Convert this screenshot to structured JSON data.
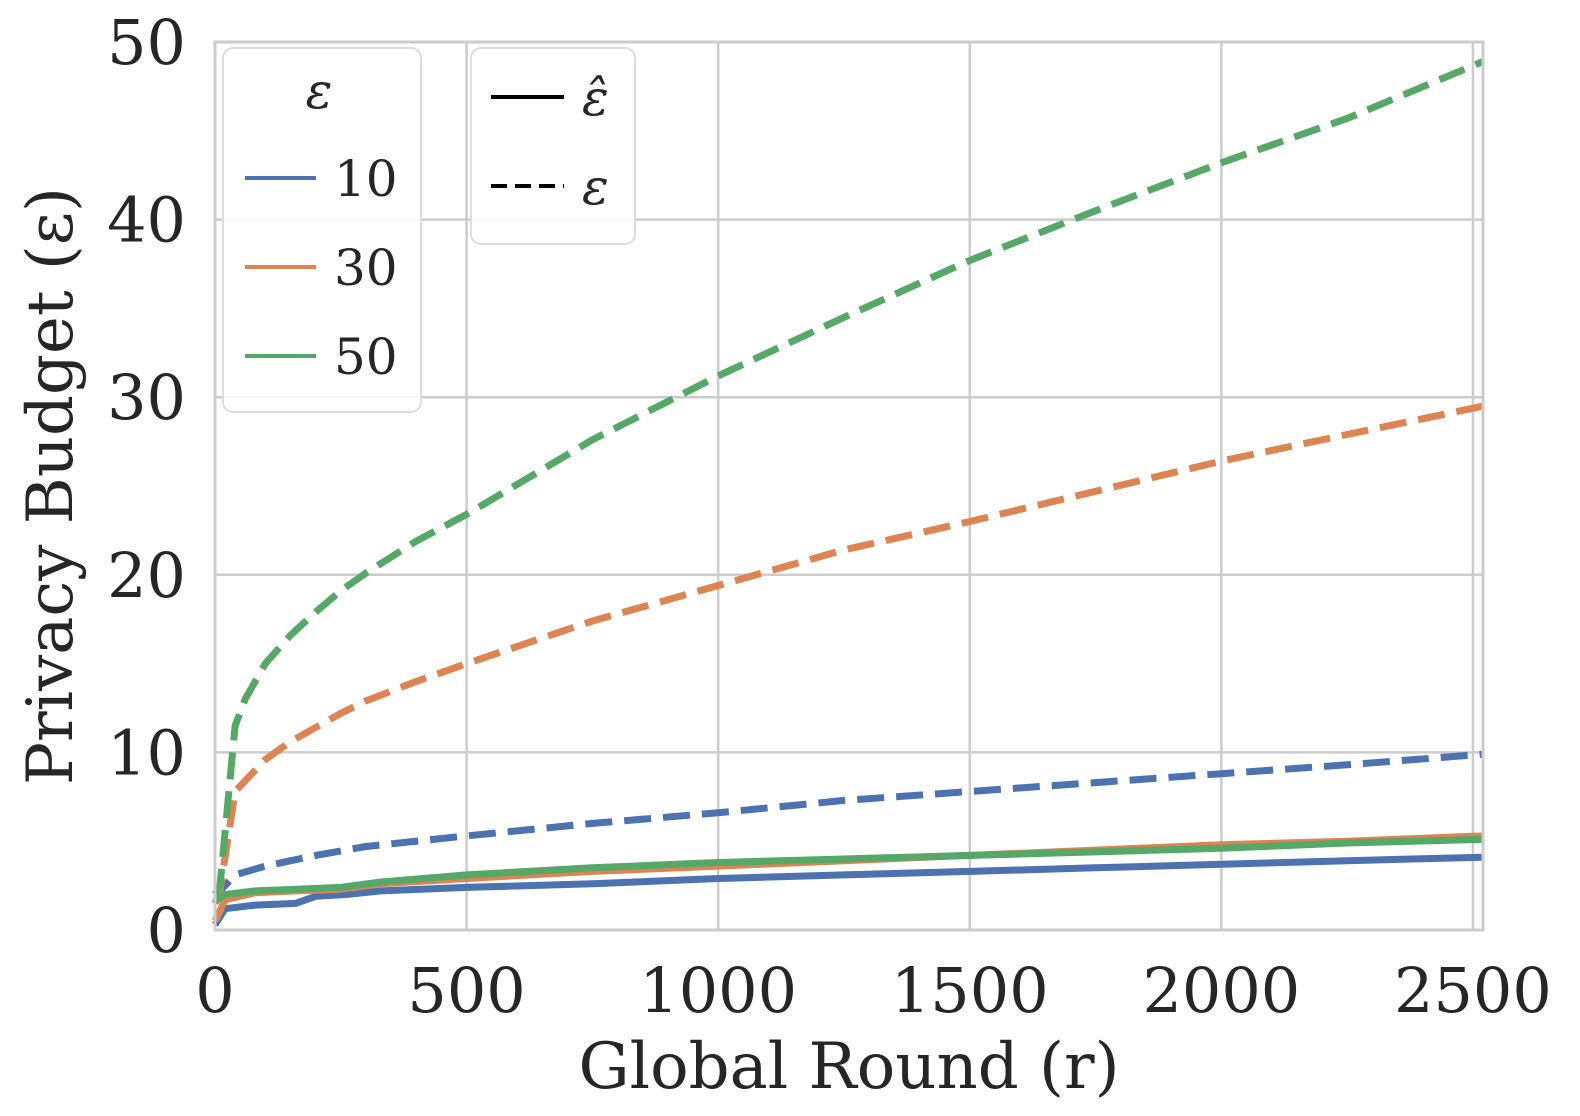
{
  "chart_data": {
    "type": "line",
    "xlabel": "Global Round (r)",
    "ylabel": "Privacy Budget (ε)",
    "xlim": [
      0,
      2520
    ],
    "ylim": [
      0,
      50
    ],
    "xticks": [
      0,
      500,
      1000,
      1500,
      2000,
      2500
    ],
    "yticks": [
      0,
      10,
      20,
      30,
      40,
      50
    ],
    "grid": true,
    "legend_color": {
      "title": "ε",
      "placement": "top-left",
      "entries": [
        {
          "label": "10",
          "color": "#4c72b0"
        },
        {
          "label": "30",
          "color": "#dd8452"
        },
        {
          "label": "50",
          "color": "#55a868"
        }
      ]
    },
    "legend_style": {
      "placement": "top-left",
      "entries": [
        {
          "label": "ε̂",
          "style": "solid"
        },
        {
          "label": "ε",
          "style": "dashed"
        }
      ]
    },
    "series": [
      {
        "name": "10",
        "style": "dashed",
        "color": "#4c72b0",
        "x": [
          0,
          10,
          40,
          100,
          200,
          300,
          500,
          750,
          1000,
          1250,
          1500,
          1750,
          2000,
          2250,
          2520
        ],
        "y": [
          1.5,
          2.2,
          3.1,
          3.6,
          4.2,
          4.7,
          5.3,
          6.0,
          6.6,
          7.3,
          7.8,
          8.3,
          8.8,
          9.3,
          9.9
        ]
      },
      {
        "name": "30",
        "style": "dashed",
        "color": "#dd8452",
        "x": [
          0,
          10,
          40,
          100,
          150,
          200,
          250,
          300,
          400,
          500,
          750,
          1000,
          1250,
          1500,
          1750,
          2000,
          2250,
          2520
        ],
        "y": [
          1.5,
          2.2,
          7.8,
          9.6,
          10.6,
          11.4,
          12.2,
          12.9,
          14.0,
          15.0,
          17.4,
          19.4,
          21.4,
          23.0,
          24.7,
          26.4,
          27.9,
          29.5
        ]
      },
      {
        "name": "50",
        "style": "dashed",
        "color": "#55a868",
        "x": [
          0,
          10,
          40,
          60,
          100,
          150,
          200,
          250,
          300,
          400,
          500,
          750,
          1000,
          1250,
          1500,
          1750,
          2000,
          2250,
          2520
        ],
        "y": [
          2.0,
          2.5,
          11.5,
          13.0,
          15.0,
          16.6,
          17.9,
          19.1,
          20.1,
          21.9,
          23.4,
          27.6,
          31.2,
          34.5,
          37.7,
          40.5,
          43.2,
          45.7,
          48.9
        ]
      },
      {
        "name": "10",
        "style": "solid",
        "color": "#4c72b0",
        "x": [
          0,
          20,
          80,
          160,
          200,
          260,
          330,
          500,
          750,
          1000,
          1250,
          1500,
          1750,
          2000,
          2250,
          2520
        ],
        "y": [
          0.3,
          1.2,
          1.4,
          1.5,
          1.9,
          2.0,
          2.2,
          2.4,
          2.6,
          2.9,
          3.1,
          3.3,
          3.5,
          3.7,
          3.9,
          4.1
        ]
      },
      {
        "name": "30",
        "style": "solid",
        "color": "#dd8452",
        "x": [
          0,
          20,
          80,
          160,
          250,
          330,
          500,
          750,
          1000,
          1250,
          1500,
          1750,
          2000,
          2250,
          2520
        ],
        "y": [
          0.5,
          1.7,
          2.1,
          2.2,
          2.3,
          2.6,
          2.9,
          3.3,
          3.6,
          3.9,
          4.2,
          4.5,
          4.8,
          5.0,
          5.3
        ]
      },
      {
        "name": "50",
        "style": "solid",
        "color": "#55a868",
        "x": [
          0,
          20,
          80,
          160,
          250,
          330,
          500,
          750,
          1000,
          1250,
          1500,
          1750,
          2000,
          2250,
          2520
        ],
        "y": [
          1.6,
          2.0,
          2.2,
          2.3,
          2.4,
          2.7,
          3.1,
          3.5,
          3.8,
          4.0,
          4.2,
          4.4,
          4.6,
          4.9,
          5.1
        ]
      }
    ]
  }
}
